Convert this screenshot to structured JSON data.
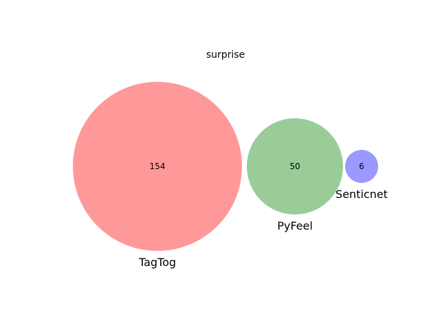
{
  "chart_data": {
    "type": "venn",
    "title": "surprise",
    "sets": [
      {
        "name": "TagTog",
        "count": 154,
        "color": "#ff9999"
      },
      {
        "name": "PyFeel",
        "count": 50,
        "color": "#99cc99"
      },
      {
        "name": "Senticnet",
        "count": 6,
        "color": "#9999ff"
      }
    ],
    "overlaps": []
  }
}
